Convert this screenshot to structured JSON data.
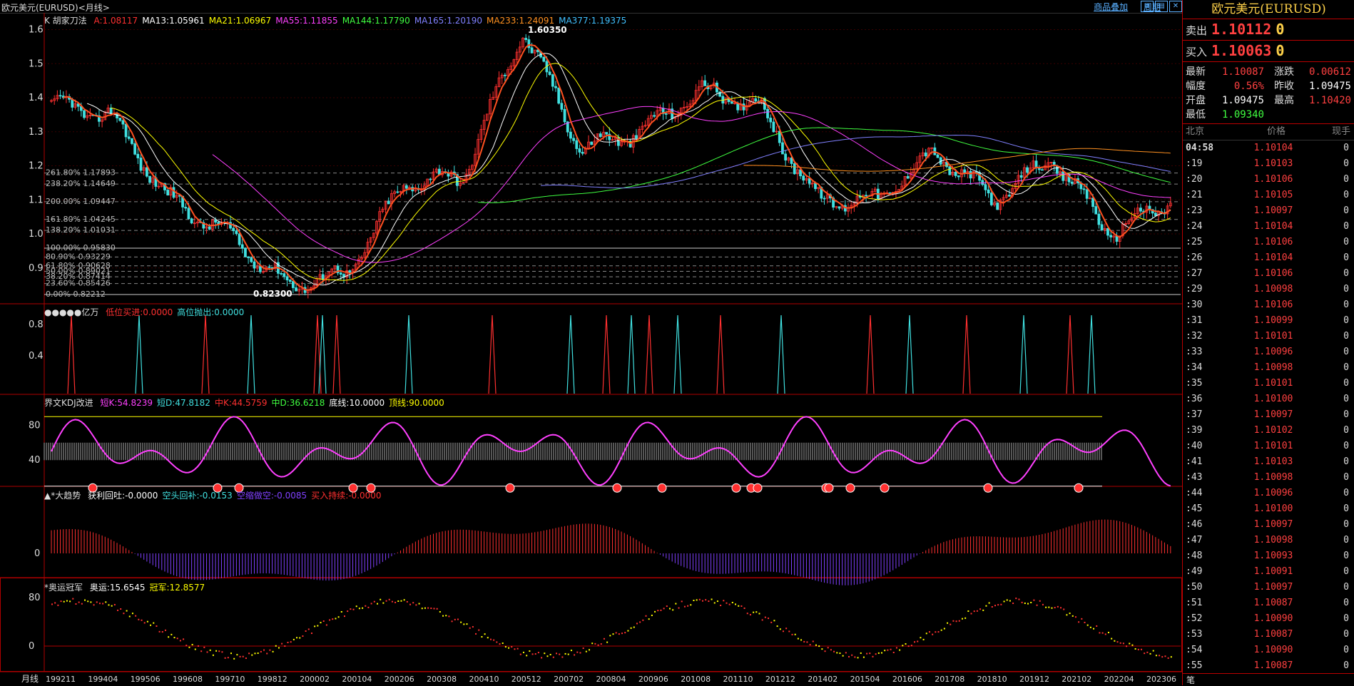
{
  "window": {
    "title": "欧元美元(EURUSD)<月线>"
  },
  "toolbar": {
    "overlay_label": "商品叠加",
    "period_label": "周期"
  },
  "main_pane": {
    "indicator": "K 胡家刀法",
    "legend": [
      {
        "text": "A:1.08117",
        "color": "#ff3030"
      },
      {
        "text": "MA13:1.05961",
        "color": "#ffffff"
      },
      {
        "text": "MA21:1.06967",
        "color": "#ffff00"
      },
      {
        "text": "MA55:1.11855",
        "color": "#ff40ff"
      },
      {
        "text": "MA144:1.17790",
        "color": "#40ff40"
      },
      {
        "text": "MA165:1.20190",
        "color": "#8080ff"
      },
      {
        "text": "MA233:1.24091",
        "color": "#ff9020"
      },
      {
        "text": "MA377:1.19375",
        "color": "#40c0ff"
      }
    ],
    "y_ticks": [
      "1.6",
      "1.5",
      "1.4",
      "1.3",
      "1.2",
      "1.1",
      "1.0",
      "0.9"
    ],
    "high_label": "1.60350",
    "low_label": "0.82300",
    "fib_levels": [
      {
        "label": "261.80%",
        "value": "1.17893",
        "price": 1.1789
      },
      {
        "label": "238.20%",
        "value": "1.14649",
        "price": 1.1465
      },
      {
        "label": "200.00%",
        "value": "1.09447",
        "price": 1.0945
      },
      {
        "label": "161.80%",
        "value": "1.04245",
        "price": 1.0425
      },
      {
        "label": "138.20%",
        "value": "1.01031",
        "price": 1.0103
      },
      {
        "label": "100.00%",
        "value": "0.95830",
        "price": 0.9583
      },
      {
        "label": "80.90%",
        "value": "0.93229",
        "price": 0.9323
      },
      {
        "label": "61.80%",
        "value": "0.90628",
        "price": 0.9063
      },
      {
        "label": "50.00%",
        "value": "0.89021",
        "price": 0.8902
      },
      {
        "label": "38.20%",
        "value": "0.87414",
        "price": 0.8741
      },
      {
        "label": "23.60%",
        "value": "0.85426",
        "price": 0.8543
      },
      {
        "label": "0.00%",
        "value": "0.82212",
        "price": 0.8221
      }
    ]
  },
  "pane2": {
    "name": "●●●●●亿万",
    "items": [
      {
        "text": "低位买进:0.0000",
        "color": "#ff3030"
      },
      {
        "text": "高位抛出:0.0000",
        "color": "#40e0e0"
      }
    ],
    "y_ticks": [
      "0.8",
      "0.4"
    ]
  },
  "pane3": {
    "name": "界文KDJ改进",
    "items": [
      {
        "text": "短K:54.8239",
        "color": "#ff40ff"
      },
      {
        "text": "短D:47.8182",
        "color": "#40e0e0"
      },
      {
        "text": "中K:44.5759",
        "color": "#ff3030"
      },
      {
        "text": "中D:36.6218",
        "color": "#40ff40"
      },
      {
        "text": "底线:10.0000",
        "color": "#ffffff"
      },
      {
        "text": "顶线:90.0000",
        "color": "#ffff00"
      }
    ],
    "y_ticks": [
      "80",
      "40"
    ]
  },
  "pane4": {
    "name": "▲*大趋势",
    "items": [
      {
        "text": "获利回吐:-0.0000",
        "color": "#ffffff"
      },
      {
        "text": "空头回补:-0.0153",
        "color": "#40e0e0"
      },
      {
        "text": "空缩做空:-0.0085",
        "color": "#8040ff"
      },
      {
        "text": "买入持续:-0.0000",
        "color": "#ff3030"
      }
    ],
    "y_ticks": [
      "0"
    ]
  },
  "pane5": {
    "name": "*奥运冠军",
    "items": [
      {
        "text": "奥运:15.6545",
        "color": "#ffffff"
      },
      {
        "text": "冠军:12.8577",
        "color": "#ffff00"
      }
    ],
    "y_ticks": [
      "80",
      "0"
    ]
  },
  "x_axis": {
    "period_label": "月线",
    "labels": [
      "199211",
      "199404",
      "199506",
      "199608",
      "199710",
      "199812",
      "200002",
      "200104",
      "200206",
      "200308",
      "200410",
      "200512",
      "200702",
      "200804",
      "200906",
      "201008",
      "201110",
      "201212",
      "201402",
      "201504",
      "201606",
      "201708",
      "201810",
      "201912",
      "202102",
      "202204",
      "202306"
    ]
  },
  "quote": {
    "title": "欧元美元(EURUSD)",
    "sell_label": "卖出",
    "sell_price": "1.10112",
    "sell_vol": "0",
    "buy_label": "买入",
    "buy_price": "1.10063",
    "buy_vol": "0",
    "stats": [
      {
        "k": "最新",
        "v": "1.10087",
        "vc": "#ff4040",
        "k2": "涨跌",
        "v2": "0.00612",
        "v2c": "#ff4040"
      },
      {
        "k": "幅度",
        "v": "0.56%",
        "vc": "#ff4040",
        "k2": "昨收",
        "v2": "1.09475",
        "v2c": "#ffffff"
      },
      {
        "k": "开盘",
        "v": "1.09475",
        "vc": "#ffffff",
        "k2": "最高",
        "v2": "1.10420",
        "v2c": "#ff4040"
      },
      {
        "k": "最低",
        "v": "1.09340",
        "vc": "#40ff40",
        "k2": "",
        "v2": "",
        "v2c": "#ffffff"
      }
    ],
    "ticks_header": [
      "北京",
      "价格",
      "现手"
    ],
    "ticks": [
      {
        "t": "04:58",
        "p": "1.10104",
        "q": "0"
      },
      {
        "t": ":19",
        "p": "1.10103",
        "q": "0"
      },
      {
        "t": ":20",
        "p": "1.10106",
        "q": "0"
      },
      {
        "t": ":21",
        "p": "1.10105",
        "q": "0"
      },
      {
        "t": ":23",
        "p": "1.10097",
        "q": "0"
      },
      {
        "t": ":24",
        "p": "1.10104",
        "q": "0"
      },
      {
        "t": ":25",
        "p": "1.10106",
        "q": "0"
      },
      {
        "t": ":26",
        "p": "1.10104",
        "q": "0"
      },
      {
        "t": ":27",
        "p": "1.10106",
        "q": "0"
      },
      {
        "t": ":29",
        "p": "1.10098",
        "q": "0"
      },
      {
        "t": ":30",
        "p": "1.10106",
        "q": "0"
      },
      {
        "t": ":31",
        "p": "1.10099",
        "q": "0"
      },
      {
        "t": ":32",
        "p": "1.10101",
        "q": "0"
      },
      {
        "t": ":33",
        "p": "1.10096",
        "q": "0"
      },
      {
        "t": ":34",
        "p": "1.10098",
        "q": "0"
      },
      {
        "t": ":35",
        "p": "1.10101",
        "q": "0"
      },
      {
        "t": ":36",
        "p": "1.10100",
        "q": "0"
      },
      {
        "t": ":37",
        "p": "1.10097",
        "q": "0"
      },
      {
        "t": ":39",
        "p": "1.10102",
        "q": "0"
      },
      {
        "t": ":40",
        "p": "1.10101",
        "q": "0"
      },
      {
        "t": ":41",
        "p": "1.10103",
        "q": "0"
      },
      {
        "t": ":43",
        "p": "1.10098",
        "q": "0"
      },
      {
        "t": ":44",
        "p": "1.10096",
        "q": "0"
      },
      {
        "t": ":45",
        "p": "1.10100",
        "q": "0"
      },
      {
        "t": ":46",
        "p": "1.10097",
        "q": "0"
      },
      {
        "t": ":47",
        "p": "1.10098",
        "q": "0"
      },
      {
        "t": ":48",
        "p": "1.10093",
        "q": "0"
      },
      {
        "t": ":49",
        "p": "1.10091",
        "q": "0"
      },
      {
        "t": ":50",
        "p": "1.10097",
        "q": "0"
      },
      {
        "t": ":51",
        "p": "1.10087",
        "q": "0"
      },
      {
        "t": ":52",
        "p": "1.10090",
        "q": "0"
      },
      {
        "t": ":53",
        "p": "1.10087",
        "q": "0"
      },
      {
        "t": ":54",
        "p": "1.10090",
        "q": "0"
      },
      {
        "t": ":55",
        "p": "1.10087",
        "q": "0"
      }
    ],
    "bottom_tab": "笔"
  },
  "colors": {
    "border": "#b00000",
    "up": "#ff3030",
    "down": "#40e0e0",
    "grid": "#440000"
  },
  "chart_data": {
    "type": "line",
    "series": [
      {
        "name": "K",
        "x": [
          "199211",
          "199506",
          "199710",
          "200002",
          "200104",
          "200206",
          "200308",
          "200512",
          "200804",
          "200906",
          "201008",
          "201110",
          "201402",
          "201504",
          "201606",
          "201708",
          "201912",
          "202102",
          "202204",
          "202306"
        ],
        "values": [
          1.38,
          1.35,
          1.1,
          1.0,
          0.85,
          0.88,
          1.15,
          1.17,
          1.6,
          1.25,
          1.3,
          1.42,
          1.38,
          1.1,
          1.1,
          1.24,
          1.1,
          1.22,
          1.0,
          1.1
        ]
      }
    ],
    "ylim": [
      0.82,
      1.62
    ]
  }
}
